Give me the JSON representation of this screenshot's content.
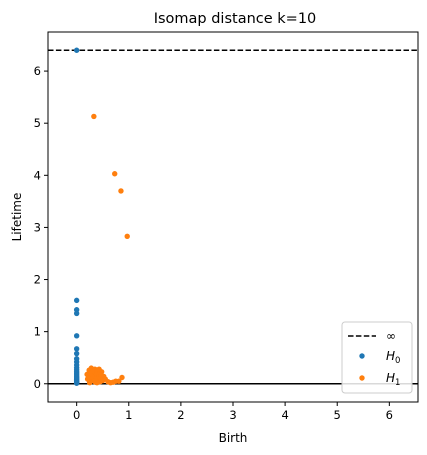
{
  "chart_data": {
    "type": "scatter",
    "title": "Isomap distance k=10",
    "xlabel": "Birth",
    "ylabel": "Lifetime",
    "xlim": [
      -0.55,
      6.55
    ],
    "ylim": [
      -0.35,
      6.75
    ],
    "xticks": [
      0,
      1,
      2,
      3,
      4,
      5,
      6
    ],
    "yticks": [
      0,
      1,
      2,
      3,
      4,
      5,
      6
    ],
    "infinity_level": 6.4,
    "infinity_label": "∞",
    "grid": false,
    "legend_position": "lower-right",
    "series": [
      {
        "name_main": "H",
        "name_sub": "0",
        "color": "#1f77b4",
        "points": [
          [
            0,
            6.4
          ],
          [
            0,
            1.6
          ],
          [
            0,
            1.42
          ],
          [
            0,
            1.35
          ],
          [
            0,
            0.92
          ],
          [
            0,
            0.67
          ],
          [
            0,
            0.58
          ],
          [
            0,
            0.48
          ],
          [
            0,
            0.42
          ],
          [
            0,
            0.36
          ],
          [
            0,
            0.31
          ],
          [
            0,
            0.27
          ],
          [
            0,
            0.23
          ],
          [
            0,
            0.2
          ],
          [
            0,
            0.17
          ],
          [
            0,
            0.14
          ],
          [
            0,
            0.12
          ],
          [
            0,
            0.1
          ],
          [
            0,
            0.08
          ],
          [
            0,
            0.06
          ],
          [
            0,
            0.04
          ],
          [
            0,
            0.03
          ],
          [
            0,
            0.02
          ],
          [
            0,
            0.01
          ]
        ]
      },
      {
        "name_main": "H",
        "name_sub": "1",
        "color": "#ff7f0e",
        "points": [
          [
            0.33,
            5.13
          ],
          [
            0.73,
            4.03
          ],
          [
            0.85,
            3.7
          ],
          [
            0.97,
            2.83
          ],
          [
            0.2,
            0.18
          ],
          [
            0.22,
            0.1
          ],
          [
            0.24,
            0.26
          ],
          [
            0.25,
            0.05
          ],
          [
            0.27,
            0.15
          ],
          [
            0.28,
            0.3
          ],
          [
            0.3,
            0.08
          ],
          [
            0.32,
            0.2
          ],
          [
            0.33,
            0.12
          ],
          [
            0.35,
            0.28
          ],
          [
            0.36,
            0.03
          ],
          [
            0.37,
            0.22
          ],
          [
            0.38,
            0.16
          ],
          [
            0.4,
            0.07
          ],
          [
            0.41,
            0.25
          ],
          [
            0.42,
            0.13
          ],
          [
            0.44,
            0.19
          ],
          [
            0.45,
            0.04
          ],
          [
            0.46,
            0.1
          ],
          [
            0.48,
            0.23
          ],
          [
            0.5,
            0.06
          ],
          [
            0.52,
            0.14
          ],
          [
            0.25,
            0.02
          ],
          [
            0.3,
            0.24
          ],
          [
            0.35,
            0.1
          ],
          [
            0.39,
            0.02
          ],
          [
            0.43,
            0.28
          ],
          [
            0.21,
            0.09
          ],
          [
            0.26,
            0.2
          ],
          [
            0.29,
            0.14
          ],
          [
            0.34,
            0.05
          ],
          [
            0.47,
            0.17
          ],
          [
            0.55,
            0.09
          ],
          [
            0.6,
            0.04
          ],
          [
            0.65,
            0.02
          ],
          [
            0.7,
            0.03
          ],
          [
            0.75,
            0.05
          ],
          [
            0.81,
            0.05
          ],
          [
            0.87,
            0.12
          ],
          [
            0.23,
            0.11
          ]
        ]
      }
    ]
  }
}
